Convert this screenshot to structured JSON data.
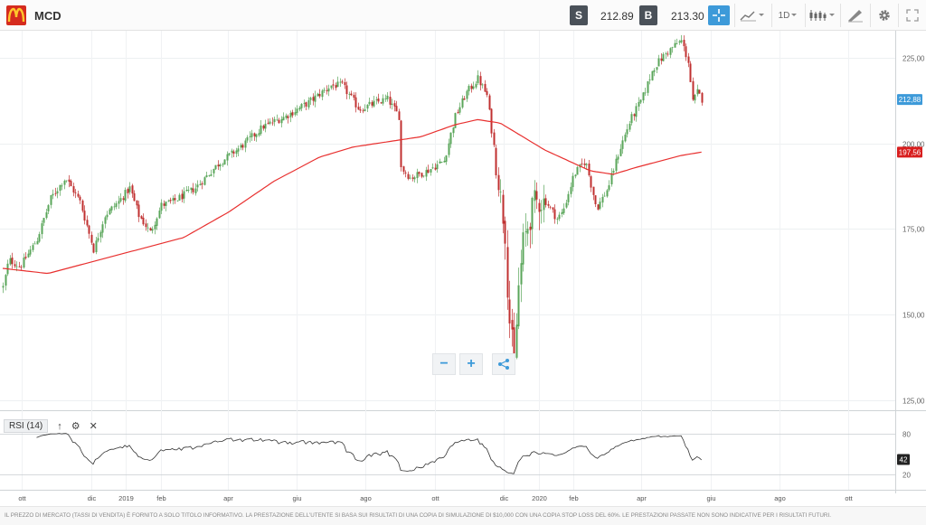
{
  "header": {
    "symbol": "MCD",
    "sell_label": "S",
    "sell_price": "212.89",
    "buy_label": "B",
    "buy_price": "213.30",
    "interval": "1D",
    "logo_icon": "mcdonalds-logo",
    "accent_color": "#3d9ad9"
  },
  "chart_data": {
    "type": "candlestick",
    "y_ticks": [
      "225,00",
      "200,00",
      "175,00",
      "150,00",
      "125,00"
    ],
    "y_tick_values": [
      225,
      200,
      175,
      150,
      125
    ],
    "ylim": [
      122,
      233
    ],
    "x_ticks": [
      "ott",
      "dic",
      "2019",
      "feb",
      "apr",
      "giu",
      "ago",
      "ott",
      "dic",
      "2020",
      "feb",
      "apr",
      "giu",
      "ago",
      "ott"
    ],
    "x_tick_dates": [
      "2018-10-01",
      "2018-12-01",
      "2019-01-01",
      "2019-02-01",
      "2019-04-01",
      "2019-06-01",
      "2019-08-01",
      "2019-10-01",
      "2019-12-01",
      "2020-01-01",
      "2020-02-01",
      "2020-04-01",
      "2020-06-01",
      "2020-08-01",
      "2020-10-01"
    ],
    "start_date": "2018-09-14",
    "end_date": "2020-11-09",
    "price_path": [
      [
        0,
        158
      ],
      [
        5,
        166
      ],
      [
        15,
        164
      ],
      [
        30,
        172
      ],
      [
        42,
        184
      ],
      [
        55,
        190
      ],
      [
        68,
        183
      ],
      [
        80,
        169
      ],
      [
        90,
        179
      ],
      [
        102,
        183
      ],
      [
        112,
        187
      ],
      [
        120,
        179
      ],
      [
        130,
        174
      ],
      [
        140,
        182
      ],
      [
        150,
        183
      ],
      [
        170,
        187
      ],
      [
        190,
        194
      ],
      [
        210,
        199
      ],
      [
        230,
        205
      ],
      [
        250,
        208
      ],
      [
        270,
        212
      ],
      [
        290,
        217
      ],
      [
        300,
        217
      ],
      [
        315,
        210
      ],
      [
        330,
        212
      ],
      [
        340,
        213
      ],
      [
        350,
        208
      ],
      [
        352,
        193
      ],
      [
        360,
        190
      ],
      [
        375,
        192
      ],
      [
        390,
        195
      ],
      [
        400,
        208
      ],
      [
        410,
        215
      ],
      [
        420,
        219
      ],
      [
        428,
        214
      ],
      [
        432,
        204
      ],
      [
        437,
        192
      ],
      [
        440,
        184
      ],
      [
        444,
        174
      ],
      [
        447,
        151
      ],
      [
        452,
        136
      ],
      [
        456,
        158
      ],
      [
        460,
        171
      ],
      [
        470,
        183
      ],
      [
        480,
        183
      ],
      [
        490,
        178
      ],
      [
        495,
        180
      ],
      [
        505,
        191
      ],
      [
        515,
        195
      ],
      [
        525,
        181
      ],
      [
        535,
        187
      ],
      [
        545,
        198
      ],
      [
        555,
        207
      ],
      [
        565,
        213
      ],
      [
        575,
        222
      ],
      [
        585,
        226
      ],
      [
        595,
        229
      ],
      [
        600,
        230
      ],
      [
        606,
        224
      ],
      [
        610,
        212
      ],
      [
        614,
        215
      ],
      [
        618,
        213
      ]
    ],
    "current_price": {
      "value": 212.88,
      "label": "212,88"
    },
    "moving_average": {
      "color": "#e8302f",
      "last_label": "197,56",
      "points": [
        [
          0,
          163.5
        ],
        [
          40,
          162
        ],
        [
          80,
          165.5
        ],
        [
          120,
          169
        ],
        [
          160,
          172.5
        ],
        [
          200,
          180
        ],
        [
          240,
          189
        ],
        [
          280,
          196
        ],
        [
          310,
          199
        ],
        [
          340,
          200.5
        ],
        [
          370,
          202
        ],
        [
          400,
          205.5
        ],
        [
          420,
          207
        ],
        [
          440,
          206
        ],
        [
          480,
          198
        ],
        [
          520,
          192
        ],
        [
          540,
          191
        ],
        [
          560,
          193
        ],
        [
          600,
          196.5
        ],
        [
          618,
          197.5
        ]
      ]
    },
    "rsi": {
      "label": "RSI (14)",
      "period": 14,
      "levels": [
        "80",
        "20"
      ],
      "level_values": [
        80,
        20
      ],
      "current_label": "42",
      "current_value": 42
    },
    "up_color": "#5aa65a",
    "down_color": "#c03030"
  },
  "footer": {
    "disclaimer": "IL PREZZO DI MERCATO (TASSI DI VENDITA) È FORNITO A SOLO TITOLO INFORMATIVO. LA PRESTAZIONE DELL'UTENTE SI BASA SUI RISULTATI DI UNA COPIA DI SIMULAZIONE DI $10,000 CON UNA COPIA STOP LOSS DEL 60%. LE PRESTAZIONI PASSATE NON SONO INDICATIVE PER I RISULTATI FUTURI."
  }
}
